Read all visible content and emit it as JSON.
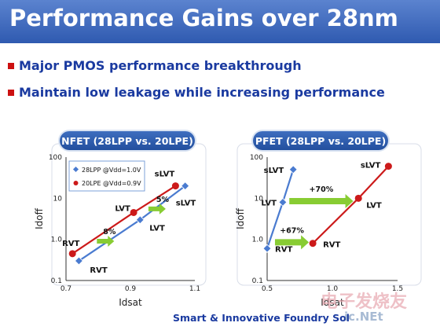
{
  "title": "Performance Gains over 28nm",
  "bullets": [
    "Major PMOS performance breakthrough",
    "Maintain low leakage while increasing performance"
  ],
  "footer": "Smart & Innovative Foundry Sol",
  "watermark": "电子发烧友",
  "watermark_url": "ic.NEt",
  "colors": {
    "blue_series": "#4a7bd0",
    "red_series": "#cc1a1a",
    "arrow": "#88cc33",
    "title_bar": "#3b63b8",
    "text_blue": "#1a3aa0"
  },
  "chart_data": [
    {
      "type": "line",
      "title": "NFET (28LPP vs. 20LPE)",
      "xlabel": "Idsat",
      "ylabel": "Idoff",
      "xlim": [
        0.7,
        1.1
      ],
      "ylim": [
        0.1,
        100
      ],
      "yscale": "log",
      "xticks": [
        "0.7",
        "0.9",
        "1.1"
      ],
      "yticks": [
        "100",
        "10",
        "1.0",
        "0.1"
      ],
      "legend_position": "top-left",
      "series": [
        {
          "name": "28LPP @Vdd=1.0V",
          "color": "#4a7bd0",
          "marker": "diamond",
          "x": [
            0.74,
            0.93,
            1.07
          ],
          "y": [
            0.3,
            3.0,
            20.0
          ],
          "labels": [
            "RVT",
            "LVT",
            "sLVT"
          ]
        },
        {
          "name": "20LPE @Vdd=0.9V",
          "color": "#cc1a1a",
          "marker": "circle",
          "x": [
            0.72,
            0.91,
            1.04
          ],
          "y": [
            0.45,
            4.5,
            20.0
          ],
          "labels": [
            "RVT",
            "LVT",
            "sLVT"
          ]
        }
      ],
      "annotations": [
        "8%",
        "5%"
      ]
    },
    {
      "type": "line",
      "title": "PFET (28LPP vs. 20LPE)",
      "xlabel": "Idsat",
      "ylabel": "Idoff",
      "xlim": [
        0.5,
        1.5
      ],
      "ylim": [
        0.1,
        100
      ],
      "yscale": "log",
      "xticks": [
        "0.5",
        "1.0",
        "1.5"
      ],
      "yticks": [
        "100",
        "10",
        "1.0",
        "0.1"
      ],
      "series": [
        {
          "color": "#4a7bd0",
          "marker": "diamond",
          "x": [
            0.5,
            0.62,
            0.7
          ],
          "y": [
            0.6,
            8.0,
            50.0
          ],
          "labels": [
            "RVT",
            "LVT",
            "sLVT"
          ]
        },
        {
          "color": "#cc1a1a",
          "marker": "circle",
          "x": [
            0.85,
            1.2,
            1.43
          ],
          "y": [
            0.8,
            10.0,
            60.0
          ],
          "labels": [
            "RVT",
            "LVT",
            "sLVT"
          ]
        }
      ],
      "annotations": [
        "+67%",
        "+70%"
      ]
    }
  ]
}
